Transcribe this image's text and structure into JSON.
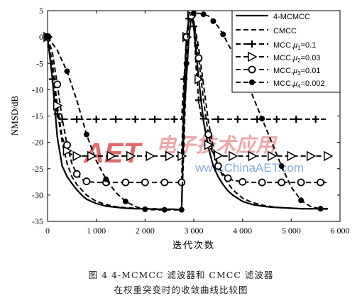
{
  "chart_data": {
    "type": "line",
    "xlabel": "迭代次数",
    "ylabel": "NMSD/dB",
    "xlim": [
      0,
      6000
    ],
    "ylim": [
      -35,
      5
    ],
    "xticks": [
      0,
      1000,
      2000,
      3000,
      4000,
      5000,
      6000
    ],
    "xtick_labels": [
      "0",
      "1 000",
      "2 000",
      "3 000",
      "4 000",
      "5 000",
      "6 000"
    ],
    "yticks": [
      5,
      0,
      -5,
      -10,
      -15,
      -20,
      -25,
      -30,
      -35
    ],
    "ytick_labels": [
      "5",
      "0",
      "-5",
      "-10",
      "-15",
      "-20",
      "-25",
      "-30",
      "-35"
    ],
    "legend_position": "top-right",
    "series": [
      {
        "name": "4-MCMCC",
        "style": "solid",
        "marker": "none",
        "x": [
          0,
          100,
          200,
          300,
          400,
          500,
          600,
          700,
          800,
          1000,
          1200,
          1400,
          1600,
          1800,
          2000,
          2200,
          2400,
          2600,
          2750,
          2800,
          2900,
          2950,
          3000,
          3100,
          3200,
          3300,
          3400,
          3500,
          3600,
          3700,
          3800,
          4000,
          4200,
          4400,
          4600,
          4800,
          5000,
          5200,
          5400,
          5600,
          5750
        ],
        "y": [
          0,
          -8,
          -19,
          -24.5,
          -26.5,
          -27.8,
          -29,
          -30,
          -30.8,
          -31.6,
          -32.1,
          -32.3,
          -32.5,
          -32.6,
          -32.6,
          -32.7,
          -32.7,
          -32.7,
          -32.8,
          -15,
          0,
          4,
          2,
          -8,
          -16,
          -21,
          -24.5,
          -26.5,
          -28,
          -29.2,
          -30,
          -31.2,
          -31.8,
          -32.1,
          -32.3,
          -32.4,
          -32.5,
          -32.6,
          -32.6,
          -32.6,
          -32.6
        ]
      },
      {
        "name": "CMCC",
        "style": "dashed",
        "marker": "none",
        "x": [
          0,
          100,
          200,
          300,
          400,
          500,
          600,
          800,
          1000,
          1200,
          1400,
          1600,
          1800,
          2000,
          2200,
          2400,
          2600,
          2750,
          2800,
          2900,
          2950,
          3000,
          3100,
          3200,
          3300,
          3400,
          3500,
          3600,
          3800,
          4000,
          4200,
          4400,
          4600,
          4800,
          5000,
          5200,
          5400,
          5600,
          5750
        ],
        "y": [
          0,
          -6,
          -14,
          -20,
          -24,
          -26.5,
          -28,
          -30,
          -31.2,
          -31.8,
          -32.2,
          -32.4,
          -32.5,
          -32.6,
          -32.6,
          -32.7,
          -32.7,
          -32.8,
          -15,
          0,
          4,
          3,
          -2,
          -9,
          -16,
          -21,
          -24.5,
          -26.5,
          -29,
          -30.6,
          -31.4,
          -31.9,
          -32.2,
          -32.4,
          -32.5,
          -32.6,
          -32.6,
          -32.6,
          -32.6
        ]
      },
      {
        "name": "MCC,μ1=0.1",
        "style": "dashed",
        "marker": "plus",
        "x": [
          0,
          50,
          100,
          150,
          200,
          250,
          300,
          400,
          600,
          800,
          1000,
          1200,
          1400,
          1600,
          1800,
          2000,
          2200,
          2400,
          2600,
          2750,
          2800,
          2850,
          2900,
          2950,
          3000,
          3050,
          3100,
          3150,
          3200,
          3300,
          3500,
          3700,
          3900,
          4100,
          4300,
          4500,
          4700,
          4900,
          5100,
          5300,
          5500,
          5750
        ],
        "y": [
          0,
          -3,
          -8,
          -12.5,
          -14.6,
          -15.4,
          -15.6,
          -15.6,
          -15.6,
          -15.6,
          -15.6,
          -15.6,
          -15.6,
          -15.6,
          -15.6,
          -15.6,
          -15.6,
          -15.6,
          -15.6,
          -15.6,
          -8,
          0,
          3.5,
          4,
          2,
          -6,
          -12,
          -15,
          -15.5,
          -15.6,
          -15.6,
          -15.6,
          -15.6,
          -15.6,
          -15.6,
          -15.6,
          -15.6,
          -15.6,
          -15.6,
          -15.6,
          -15.6,
          -15.6
        ]
      },
      {
        "name": "MCC,μ2=0.03",
        "style": "dashed",
        "marker": "triangle-right",
        "x": [
          0,
          100,
          200,
          300,
          400,
          500,
          600,
          700,
          900,
          1100,
          1300,
          1500,
          1700,
          1900,
          2100,
          2300,
          2500,
          2700,
          2750,
          2800,
          2850,
          2900,
          2950,
          3000,
          3100,
          3200,
          3300,
          3400,
          3500,
          3600,
          3800,
          4000,
          4200,
          4400,
          4600,
          4800,
          5000,
          5200,
          5400,
          5600,
          5750
        ],
        "y": [
          0,
          -5,
          -13,
          -19,
          -21.6,
          -22.4,
          -22.6,
          -22.6,
          -22.6,
          -22.6,
          -22.6,
          -22.6,
          -22.6,
          -22.6,
          -22.6,
          -22.6,
          -22.6,
          -22.6,
          -22.6,
          -10,
          0,
          3.5,
          4,
          2,
          -8,
          -16,
          -20.5,
          -22,
          -22.5,
          -22.6,
          -22.6,
          -22.6,
          -22.6,
          -22.6,
          -22.6,
          -22.6,
          -22.6,
          -22.6,
          -22.6,
          -22.6,
          -22.6
        ]
      },
      {
        "name": "MCC,μ3=0.01",
        "style": "dashed",
        "marker": "circle-open",
        "x": [
          0,
          100,
          200,
          300,
          400,
          500,
          600,
          700,
          800,
          1000,
          1200,
          1400,
          1600,
          1800,
          2000,
          2200,
          2400,
          2600,
          2750,
          2800,
          2850,
          2900,
          2950,
          3000,
          3100,
          3200,
          3300,
          3400,
          3500,
          3600,
          3700,
          3800,
          4000,
          4200,
          4400,
          4600,
          4800,
          5000,
          5200,
          5400,
          5600,
          5750
        ],
        "y": [
          0,
          -3,
          -9,
          -15.5,
          -20.5,
          -24,
          -26,
          -27,
          -27.4,
          -27.6,
          -27.6,
          -27.6,
          -27.6,
          -27.6,
          -27.6,
          -27.6,
          -27.6,
          -27.6,
          -27.6,
          -12,
          0,
          3.5,
          4,
          3,
          -4,
          -12,
          -18.5,
          -22,
          -24.5,
          -26,
          -26.8,
          -27.2,
          -27.5,
          -27.6,
          -27.6,
          -27.6,
          -27.6,
          -27.6,
          -27.6,
          -27.6,
          -27.6,
          -27.6
        ]
      },
      {
        "name": "MCC,μ4=0.002",
        "style": "dashed",
        "marker": "circle-filled",
        "x": [
          0,
          200,
          400,
          600,
          800,
          1000,
          1200,
          1400,
          1600,
          1800,
          2000,
          2200,
          2400,
          2600,
          2750,
          2800,
          2850,
          2900,
          3000,
          3100,
          3200,
          3300,
          3400,
          3500,
          3600,
          3800,
          4000,
          4200,
          4400,
          4600,
          4800,
          5000,
          5200,
          5400,
          5600,
          5750
        ],
        "y": [
          0,
          -2.5,
          -6.5,
          -12,
          -18.5,
          -23.5,
          -27,
          -29.5,
          -31.2,
          -32.2,
          -32.7,
          -32.8,
          -32.8,
          -32.8,
          -32.8,
          -20,
          -5,
          4,
          4.5,
          4.5,
          4.3,
          4,
          3,
          2,
          0.5,
          -3,
          -7,
          -11,
          -15.5,
          -20,
          -24.5,
          -28.5,
          -31,
          -32.2,
          -32.6,
          -32.7
        ]
      }
    ],
    "legend_labels": {
      "s0": "4-MCMCC",
      "s1": "CMCC",
      "s2": {
        "pre": "MCC,",
        "mu": "μ",
        "sub": "1",
        "post": "=0.1"
      },
      "s3": {
        "pre": "MCC,",
        "mu": "μ",
        "sub": "2",
        "post": "=0.03"
      },
      "s4": {
        "pre": "MCC,",
        "mu": "μ",
        "sub": "3",
        "post": "=0.01"
      },
      "s5": {
        "pre": "MCC,",
        "mu": "μ",
        "sub": "4",
        "post": "=0.002"
      }
    }
  },
  "caption": {
    "line1": "图 4   4-MCMCC 滤波器和 CMCC 滤波器",
    "line2": "在权重突变时的收敛曲线比较图"
  },
  "watermark": {
    "logo_text": "AET",
    "cn_text": "电子技术应用",
    "url_text": "www.ChinaAET.com"
  },
  "colors": {
    "line": "#000000",
    "watermark_red": "#d9383a",
    "watermark_blue": "#5b8fd1"
  }
}
